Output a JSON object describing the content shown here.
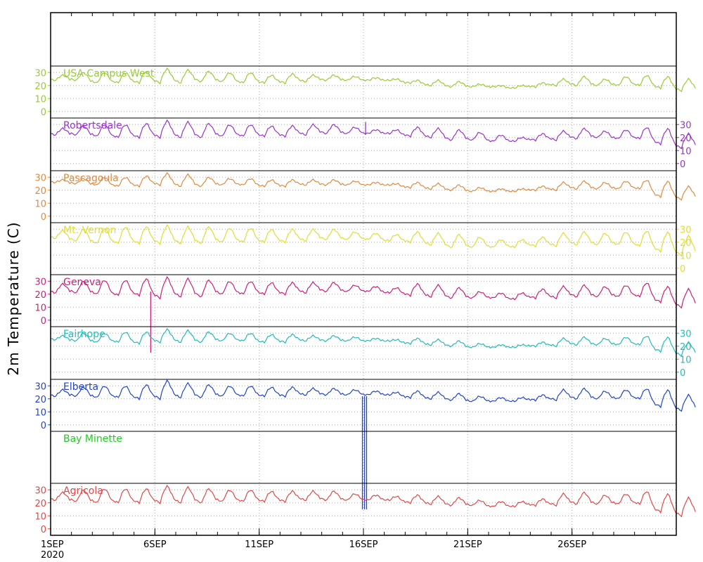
{
  "chart_data": {
    "type": "line",
    "ylabel": "2m Temperature (C)",
    "x_start": "2020-09-01",
    "x_end": "2020-10-01",
    "x_ticks": [
      {
        "date": "2020-09-01",
        "label": "1SEP",
        "sublabel": "2020"
      },
      {
        "date": "2020-09-06",
        "label": "6SEP",
        "sublabel": ""
      },
      {
        "date": "2020-09-11",
        "label": "11SEP",
        "sublabel": ""
      },
      {
        "date": "2020-09-16",
        "label": "16SEP",
        "sublabel": ""
      },
      {
        "date": "2020-09-21",
        "label": "21SEP",
        "sublabel": ""
      },
      {
        "date": "2020-09-26",
        "label": "26SEP",
        "sublabel": ""
      }
    ],
    "grid": true,
    "panels": [
      {
        "name": "USA Campus West",
        "color": "#99cc33",
        "axis_side": "left",
        "ylim": [
          -5,
          35
        ],
        "yticks": [
          "0",
          "10",
          "20",
          "30"
        ],
        "daily_max": [
          28,
          30,
          30,
          30,
          31,
          33,
          32,
          31,
          30,
          30,
          28,
          29,
          28,
          28,
          27,
          26,
          25,
          24,
          24,
          23,
          21,
          20,
          20,
          22,
          25,
          27,
          25,
          27,
          28,
          27,
          25
        ],
        "daily_min": [
          24,
          24,
          22,
          22,
          22,
          22,
          22,
          23,
          23,
          22,
          22,
          22,
          23,
          24,
          24,
          24,
          24,
          22,
          20,
          19,
          19,
          19,
          18,
          19,
          20,
          20,
          20,
          20,
          20,
          18,
          16
        ],
        "spikes": []
      },
      {
        "name": "Robertsdale",
        "color": "#9933cc",
        "axis_side": "right",
        "ylim": [
          -5,
          35
        ],
        "yticks": [
          "0",
          "10",
          "20",
          "30"
        ],
        "daily_max": [
          27,
          29,
          30,
          30,
          31,
          33,
          32,
          31,
          30,
          30,
          29,
          29,
          30,
          30,
          28,
          26,
          26,
          28,
          27,
          26,
          24,
          22,
          20,
          23,
          25,
          27,
          25,
          26,
          28,
          27,
          23
        ],
        "daily_min": [
          22,
          22,
          21,
          20,
          20,
          20,
          20,
          20,
          21,
          21,
          21,
          21,
          22,
          23,
          23,
          23,
          23,
          21,
          20,
          18,
          18,
          17,
          17,
          18,
          18,
          19,
          20,
          19,
          19,
          15,
          12
        ],
        "spikes": [
          {
            "date": "2020-09-16.1",
            "value": 32
          }
        ]
      },
      {
        "name": "Pascagoula",
        "color": "#e08a3c",
        "axis_side": "left",
        "ylim": [
          -5,
          35
        ],
        "yticks": [
          "0",
          "10",
          "20",
          "30"
        ],
        "daily_max": [
          28,
          29,
          30,
          30,
          31,
          33,
          32,
          30,
          29,
          29,
          28,
          28,
          28,
          28,
          27,
          26,
          25,
          26,
          25,
          24,
          22,
          21,
          21,
          23,
          26,
          27,
          26,
          27,
          28,
          27,
          23
        ],
        "daily_min": [
          26,
          25,
          24,
          23,
          23,
          24,
          23,
          23,
          24,
          24,
          23,
          23,
          24,
          24,
          24,
          24,
          24,
          22,
          21,
          20,
          19,
          19,
          19,
          20,
          20,
          21,
          21,
          21,
          21,
          15,
          13
        ],
        "spikes": []
      },
      {
        "name": "Mt. Vernon",
        "color": "#e0dd33",
        "axis_side": "right",
        "ylim": [
          -5,
          35
        ],
        "yticks": [
          "0",
          "10",
          "20",
          "30"
        ],
        "daily_max": [
          29,
          30,
          31,
          32,
          32,
          33,
          32,
          32,
          31,
          31,
          30,
          30,
          30,
          30,
          28,
          27,
          26,
          28,
          27,
          26,
          24,
          22,
          22,
          24,
          27,
          28,
          27,
          28,
          29,
          28,
          25
        ],
        "daily_min": [
          23,
          21,
          19,
          19,
          19,
          19,
          19,
          19,
          20,
          20,
          20,
          20,
          21,
          22,
          22,
          22,
          21,
          20,
          18,
          16,
          16,
          16,
          16,
          17,
          17,
          18,
          18,
          18,
          17,
          13,
          10
        ],
        "spikes": []
      },
      {
        "name": "Geneva",
        "color": "#cc1f7a",
        "axis_side": "left",
        "ylim": [
          -5,
          35
        ],
        "yticks": [
          "0",
          "10",
          "20",
          "30"
        ],
        "daily_max": [
          28,
          30,
          31,
          31,
          32,
          33,
          32,
          31,
          30,
          30,
          29,
          29,
          29,
          29,
          27,
          26,
          25,
          28,
          27,
          25,
          22,
          21,
          21,
          24,
          26,
          27,
          26,
          27,
          29,
          26,
          24
        ],
        "daily_min": [
          21,
          21,
          20,
          19,
          19,
          17,
          18,
          18,
          20,
          20,
          20,
          20,
          21,
          22,
          22,
          22,
          21,
          19,
          18,
          17,
          17,
          17,
          16,
          17,
          17,
          18,
          18,
          18,
          18,
          14,
          10
        ],
        "spikes": [
          {
            "date": "2020-09-05.8",
            "value": -25
          }
        ]
      },
      {
        "name": "Fairhope",
        "color": "#22bbbb",
        "axis_side": "right",
        "ylim": [
          -5,
          35
        ],
        "yticks": [
          "0",
          "10",
          "20",
          "30"
        ],
        "daily_max": [
          28,
          30,
          30,
          31,
          31,
          33,
          32,
          31,
          30,
          30,
          29,
          29,
          28,
          28,
          27,
          26,
          25,
          26,
          25,
          24,
          22,
          21,
          21,
          23,
          26,
          27,
          26,
          27,
          28,
          27,
          23
        ],
        "daily_min": [
          25,
          24,
          23,
          23,
          22,
          23,
          23,
          23,
          24,
          24,
          23,
          23,
          24,
          24,
          24,
          24,
          24,
          22,
          21,
          20,
          19,
          19,
          19,
          20,
          20,
          21,
          21,
          21,
          21,
          16,
          13
        ],
        "spikes": []
      },
      {
        "name": "Elberta",
        "color": "#2244cc",
        "axis_side": "left",
        "ylim": [
          -5,
          35
        ],
        "yticks": [
          "0",
          "10",
          "20",
          "30"
        ],
        "daily_max": [
          27,
          29,
          30,
          30,
          31,
          34,
          32,
          31,
          30,
          30,
          29,
          29,
          28,
          28,
          27,
          26,
          25,
          26,
          25,
          24,
          22,
          21,
          21,
          23,
          27,
          28,
          26,
          27,
          28,
          27,
          23
        ],
        "daily_min": [
          22,
          22,
          21,
          21,
          20,
          20,
          21,
          21,
          22,
          22,
          22,
          22,
          23,
          23,
          23,
          23,
          23,
          21,
          20,
          19,
          18,
          18,
          18,
          19,
          19,
          20,
          20,
          20,
          20,
          14,
          11
        ],
        "spikes": [
          {
            "date": "2020-09-15.95",
            "value": -65
          },
          {
            "date": "2020-09-16.05",
            "value": -65
          },
          {
            "date": "2020-09-16.15",
            "value": -65
          }
        ]
      },
      {
        "name": "Bay Minette",
        "color": "#22cc22",
        "axis_side": "right",
        "ylim": [
          -5,
          35
        ],
        "yticks": [],
        "daily_max": [],
        "daily_min": [],
        "spikes": []
      },
      {
        "name": "Agricola",
        "color": "#e04848",
        "axis_side": "left",
        "ylim": [
          -5,
          35
        ],
        "yticks": [
          "0",
          "10",
          "20",
          "30"
        ],
        "daily_max": [
          28,
          30,
          31,
          31,
          31,
          33,
          32,
          31,
          30,
          30,
          29,
          29,
          29,
          29,
          27,
          26,
          25,
          26,
          25,
          24,
          22,
          21,
          21,
          23,
          27,
          28,
          26,
          27,
          29,
          27,
          24
        ],
        "daily_min": [
          22,
          21,
          20,
          20,
          20,
          20,
          20,
          20,
          21,
          21,
          21,
          21,
          22,
          22,
          22,
          22,
          22,
          20,
          19,
          18,
          18,
          17,
          17,
          18,
          18,
          19,
          19,
          19,
          19,
          13,
          10
        ],
        "spikes": []
      }
    ]
  }
}
